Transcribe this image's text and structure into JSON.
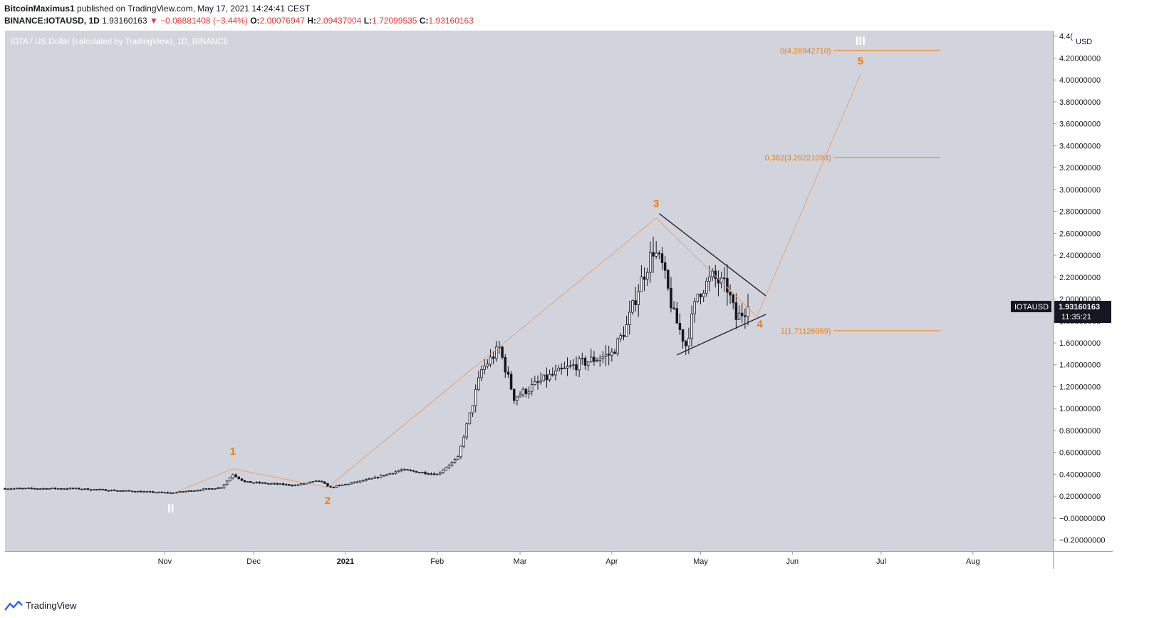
{
  "header": {
    "author": "BitcoinMaximus1",
    "published": "published on TradingView.com, May 17, 2021 14:24:41 CEST",
    "symbol": "BINANCE:IOTAUSD, 1D",
    "last": "1.93160163",
    "change_arrow": "▼",
    "change": "−0.06881408 (−3.44%)",
    "o_label": "O:",
    "o_value": "2.00076947",
    "h_label": "H:",
    "h_value": "2.09437004",
    "l_label": "L:",
    "l_value": "1.72099535",
    "c_label": "C:",
    "c_value": "1.93160163"
  },
  "footer": {
    "brand": "TradingView"
  },
  "colors": {
    "pane": "#d1d4dc",
    "orange": "#f57c00",
    "candle": "#131722",
    "red": "#e53935"
  },
  "chart_data": {
    "type": "candlestick",
    "title": "IOTA / US Dollar (calculated by TradingView), 1D, BINANCE",
    "currency": "USD",
    "ylim": [
      -0.3,
      4.45
    ],
    "y_ticks": [
      {
        "v": 4.4,
        "label": "4.4("
      },
      {
        "v": 4.2,
        "label": "4.20000000"
      },
      {
        "v": 4.0,
        "label": "4.00000000"
      },
      {
        "v": 3.8,
        "label": "3.80000000"
      },
      {
        "v": 3.6,
        "label": "3.60000000"
      },
      {
        "v": 3.4,
        "label": "3.40000000"
      },
      {
        "v": 3.2,
        "label": "3.20000000"
      },
      {
        "v": 3.0,
        "label": "3.00000000"
      },
      {
        "v": 2.8,
        "label": "2.80000000"
      },
      {
        "v": 2.6,
        "label": "2.60000000"
      },
      {
        "v": 2.4,
        "label": "2.40000000"
      },
      {
        "v": 2.2,
        "label": "2.20000000"
      },
      {
        "v": 2.0,
        "label": "2.00000000"
      },
      {
        "v": 1.8,
        "label": "1.80000000"
      },
      {
        "v": 1.6,
        "label": "1.60000000"
      },
      {
        "v": 1.4,
        "label": "1.40000000"
      },
      {
        "v": 1.2,
        "label": "1.20000000"
      },
      {
        "v": 1.0,
        "label": "1.00000000"
      },
      {
        "v": 0.8,
        "label": "0.80000000"
      },
      {
        "v": 0.6,
        "label": "0.60000000"
      },
      {
        "v": 0.4,
        "label": "0.40000000"
      },
      {
        "v": 0.2,
        "label": "0.20000000"
      },
      {
        "v": 0.0,
        "label": "−0.00000000"
      },
      {
        "v": -0.2,
        "label": "−0.20000000"
      }
    ],
    "x_ticks": [
      {
        "date": "2020-11-01",
        "label": "Nov"
      },
      {
        "date": "2020-12-01",
        "label": "Dec"
      },
      {
        "date": "2021-01-01",
        "label": "2021"
      },
      {
        "date": "2021-02-01",
        "label": "Feb"
      },
      {
        "date": "2021-03-01",
        "label": "Mar"
      },
      {
        "date": "2021-04-01",
        "label": "Apr"
      },
      {
        "date": "2021-05-01",
        "label": "May"
      },
      {
        "date": "2021-06-01",
        "label": "Jun"
      },
      {
        "date": "2021-07-01",
        "label": "Jul"
      },
      {
        "date": "2021-08-01",
        "label": "Aug"
      }
    ],
    "x_range": [
      "2020-09-08",
      "2021-08-28"
    ],
    "price_anchors": [
      [
        "2020-09-08",
        0.27
      ],
      [
        "2020-10-01",
        0.27
      ],
      [
        "2020-11-03",
        0.23
      ],
      [
        "2020-11-20",
        0.28
      ],
      [
        "2020-11-24",
        0.4
      ],
      [
        "2020-11-28",
        0.33
      ],
      [
        "2020-12-15",
        0.3
      ],
      [
        "2020-12-23",
        0.34
      ],
      [
        "2020-12-27",
        0.28
      ],
      [
        "2021-01-10",
        0.36
      ],
      [
        "2021-01-20",
        0.44
      ],
      [
        "2021-02-01",
        0.4
      ],
      [
        "2021-02-08",
        0.55
      ],
      [
        "2021-02-12",
        0.95
      ],
      [
        "2021-02-16",
        1.35
      ],
      [
        "2021-02-22",
        1.55
      ],
      [
        "2021-02-27",
        1.1
      ],
      [
        "2021-03-10",
        1.28
      ],
      [
        "2021-03-20",
        1.4
      ],
      [
        "2021-04-01",
        1.5
      ],
      [
        "2021-04-06",
        1.75
      ],
      [
        "2021-04-10",
        2.1
      ],
      [
        "2021-04-15",
        2.45
      ],
      [
        "2021-04-18",
        2.3
      ],
      [
        "2021-04-22",
        1.85
      ],
      [
        "2021-04-26",
        1.58
      ],
      [
        "2021-04-30",
        2.05
      ],
      [
        "2021-05-05",
        2.2
      ],
      [
        "2021-05-10",
        2.1
      ],
      [
        "2021-05-13",
        1.82
      ],
      [
        "2021-05-17",
        1.93
      ]
    ],
    "last_price": {
      "value": 1.9316,
      "label": "1.93160163",
      "countdown": "11:35:21",
      "symbol": "IOTAUSD"
    },
    "wave_path": [
      [
        "2020-11-04",
        0.23
      ],
      [
        "2020-11-24",
        0.45
      ],
      [
        "2020-12-26",
        0.28
      ],
      [
        "2021-04-16",
        2.74
      ],
      [
        "2021-05-20",
        1.84
      ],
      [
        "2021-06-24",
        4.05
      ]
    ],
    "wave_labels": [
      {
        "text": "II",
        "date": "2020-11-03",
        "y": 0.05,
        "color": "white"
      },
      {
        "text": "1",
        "date": "2020-11-24",
        "y": 0.58,
        "color": "orange"
      },
      {
        "text": "2",
        "date": "2020-12-26",
        "y": 0.13,
        "color": "orange"
      },
      {
        "text": "3",
        "date": "2021-04-16",
        "y": 2.84,
        "color": "orange"
      },
      {
        "text": "4",
        "date": "2021-05-21",
        "y": 1.74,
        "color": "orange"
      },
      {
        "text": "5",
        "date": "2021-06-24",
        "y": 4.14,
        "color": "orange"
      },
      {
        "text": "III",
        "date": "2021-06-24",
        "y": 4.32,
        "color": "white"
      }
    ],
    "triangle_lines": [
      [
        [
          "2021-04-17",
          2.78
        ],
        [
          "2021-05-23",
          2.03
        ]
      ],
      [
        [
          "2021-04-23",
          1.49
        ],
        [
          "2021-05-23",
          1.86
        ]
      ]
    ],
    "fib_levels": [
      {
        "value": 4.2694271,
        "label": "0(4.26942710)"
      },
      {
        "value": 3.29221093,
        "label": "0.382(3.29221093)"
      },
      {
        "value": 1.71126959,
        "label": "1(1.71126959)"
      }
    ],
    "fib_x_range": [
      "2021-06-15",
      "2021-07-21"
    ]
  }
}
